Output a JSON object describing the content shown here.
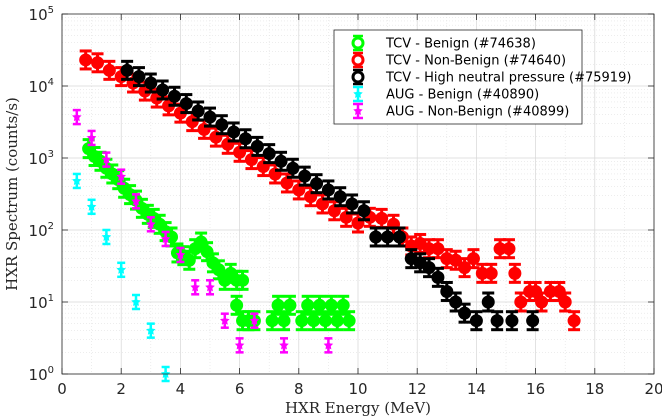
{
  "chart_data": {
    "type": "scatter",
    "xlabel": "HXR Energy (MeV)",
    "ylabel": "HXR Spectrum (counts/s)",
    "xlim": [
      0,
      20
    ],
    "ylim": [
      1,
      100000
    ],
    "yscale": "log",
    "grid": true,
    "legend_position": "top-right",
    "x_ticks": [
      "0",
      "2",
      "4",
      "6",
      "8",
      "10",
      "12",
      "14",
      "16",
      "18",
      "20"
    ],
    "y_ticks": [
      {
        "base": "10",
        "exp": "0"
      },
      {
        "base": "10",
        "exp": "1"
      },
      {
        "base": "10",
        "exp": "2"
      },
      {
        "base": "10",
        "exp": "3"
      },
      {
        "base": "10",
        "exp": "4"
      },
      {
        "base": "10",
        "exp": "5"
      }
    ],
    "series": [
      {
        "name": "TCV - Benign (#74638)",
        "color": "#00ff00",
        "marker": "circle",
        "points": [
          [
            0.9,
            1350
          ],
          [
            1.1,
            1050
          ],
          [
            1.3,
            900
          ],
          [
            1.5,
            720
          ],
          [
            1.7,
            600
          ],
          [
            1.9,
            500
          ],
          [
            2.1,
            380
          ],
          [
            2.3,
            310
          ],
          [
            2.5,
            260
          ],
          [
            2.7,
            200
          ],
          [
            2.9,
            165
          ],
          [
            3.1,
            145
          ],
          [
            3.3,
            120
          ],
          [
            3.5,
            95
          ],
          [
            3.7,
            80
          ],
          [
            3.9,
            48
          ],
          [
            4.1,
            44
          ],
          [
            4.3,
            38
          ],
          [
            4.5,
            55
          ],
          [
            4.7,
            68
          ],
          [
            4.9,
            50
          ],
          [
            5.1,
            35
          ],
          [
            5.3,
            28
          ],
          [
            5.5,
            20
          ],
          [
            5.7,
            25
          ],
          [
            5.9,
            20
          ],
          [
            5.9,
            9
          ],
          [
            6.1,
            20
          ],
          [
            6.1,
            5.5
          ],
          [
            6.3,
            5.5
          ],
          [
            6.5,
            5.5
          ],
          [
            7.1,
            5.5
          ],
          [
            7.3,
            9
          ],
          [
            7.5,
            5.5
          ],
          [
            7.7,
            9
          ],
          [
            8.1,
            5.5
          ],
          [
            8.3,
            9
          ],
          [
            8.5,
            5.5
          ],
          [
            8.7,
            9
          ],
          [
            8.9,
            5.5
          ],
          [
            9.1,
            9
          ],
          [
            9.3,
            5.5
          ],
          [
            9.5,
            9
          ],
          [
            9.7,
            5.5
          ]
        ]
      },
      {
        "name": "TCV - Non-Benign (#74640)",
        "color": "#ff0000",
        "marker": "circle",
        "points": [
          [
            0.8,
            23000
          ],
          [
            1.2,
            21000
          ],
          [
            1.6,
            16500
          ],
          [
            2.0,
            13500
          ],
          [
            2.4,
            11000
          ],
          [
            2.8,
            8500
          ],
          [
            3.2,
            6800
          ],
          [
            3.6,
            5300
          ],
          [
            4.0,
            4200
          ],
          [
            4.4,
            3200
          ],
          [
            4.8,
            2500
          ],
          [
            5.2,
            1950
          ],
          [
            5.6,
            1550
          ],
          [
            6.0,
            1200
          ],
          [
            6.4,
            950
          ],
          [
            6.8,
            760
          ],
          [
            7.2,
            600
          ],
          [
            7.6,
            450
          ],
          [
            8.0,
            360
          ],
          [
            8.4,
            290
          ],
          [
            8.8,
            230
          ],
          [
            9.2,
            185
          ],
          [
            9.6,
            150
          ],
          [
            10.0,
            125
          ],
          [
            10.4,
            150
          ],
          [
            10.8,
            145
          ],
          [
            11.2,
            120
          ],
          [
            11.5,
            80
          ],
          [
            11.8,
            60
          ],
          [
            12.1,
            65
          ],
          [
            12.4,
            55
          ],
          [
            12.7,
            55
          ],
          [
            13.0,
            40
          ],
          [
            13.3,
            38
          ],
          [
            13.6,
            30
          ],
          [
            13.9,
            40
          ],
          [
            14.2,
            25
          ],
          [
            14.5,
            25
          ],
          [
            14.8,
            55
          ],
          [
            15.1,
            55
          ],
          [
            15.3,
            25
          ],
          [
            15.5,
            10
          ],
          [
            15.8,
            14
          ],
          [
            16.0,
            14
          ],
          [
            16.2,
            10
          ],
          [
            16.5,
            14
          ],
          [
            16.8,
            14
          ],
          [
            17.0,
            10
          ],
          [
            17.3,
            5.5
          ]
        ]
      },
      {
        "name": "TCV - High neutral pressure (#75919)",
        "color": "#000000",
        "marker": "circle",
        "points": [
          [
            2.2,
            16500
          ],
          [
            2.6,
            13500
          ],
          [
            3.0,
            11000
          ],
          [
            3.4,
            8800
          ],
          [
            3.8,
            7200
          ],
          [
            4.2,
            5700
          ],
          [
            4.6,
            4500
          ],
          [
            5.0,
            3700
          ],
          [
            5.4,
            2900
          ],
          [
            5.8,
            2300
          ],
          [
            6.2,
            1850
          ],
          [
            6.6,
            1450
          ],
          [
            7.0,
            1150
          ],
          [
            7.4,
            900
          ],
          [
            7.8,
            720
          ],
          [
            8.2,
            560
          ],
          [
            8.6,
            440
          ],
          [
            9.0,
            360
          ],
          [
            9.4,
            290
          ],
          [
            9.8,
            230
          ],
          [
            10.2,
            185
          ],
          [
            10.6,
            80
          ],
          [
            11.0,
            80
          ],
          [
            11.4,
            80
          ],
          [
            11.8,
            40
          ],
          [
            12.1,
            35
          ],
          [
            12.4,
            30
          ],
          [
            12.7,
            22
          ],
          [
            13.0,
            14
          ],
          [
            13.3,
            10
          ],
          [
            13.6,
            7
          ],
          [
            14.0,
            5.5
          ],
          [
            14.4,
            10
          ],
          [
            14.7,
            5.5
          ],
          [
            15.2,
            5.5
          ],
          [
            15.9,
            5.5
          ]
        ]
      },
      {
        "name": "AUG - Benign (#40890)",
        "color": "#00ffff",
        "marker": "star",
        "points": [
          [
            0.5,
            480
          ],
          [
            1.0,
            210
          ],
          [
            1.5,
            80
          ],
          [
            2.0,
            28
          ],
          [
            2.5,
            10
          ],
          [
            3.0,
            4
          ],
          [
            3.5,
            1
          ]
        ]
      },
      {
        "name": "AUG - Non-Benign (#40899)",
        "color": "#ff00ff",
        "marker": "star",
        "points": [
          [
            0.5,
            3700
          ],
          [
            1.0,
            1900
          ],
          [
            1.5,
            950
          ],
          [
            2.0,
            550
          ],
          [
            2.5,
            250
          ],
          [
            3.0,
            120
          ],
          [
            3.5,
            75
          ],
          [
            4.0,
            45
          ],
          [
            4.5,
            16
          ],
          [
            5.0,
            16
          ],
          [
            5.5,
            5.5
          ],
          [
            6.0,
            2.5
          ],
          [
            6.5,
            5.5
          ],
          [
            7.5,
            2.5
          ],
          [
            9.0,
            2.5
          ]
        ]
      }
    ]
  }
}
